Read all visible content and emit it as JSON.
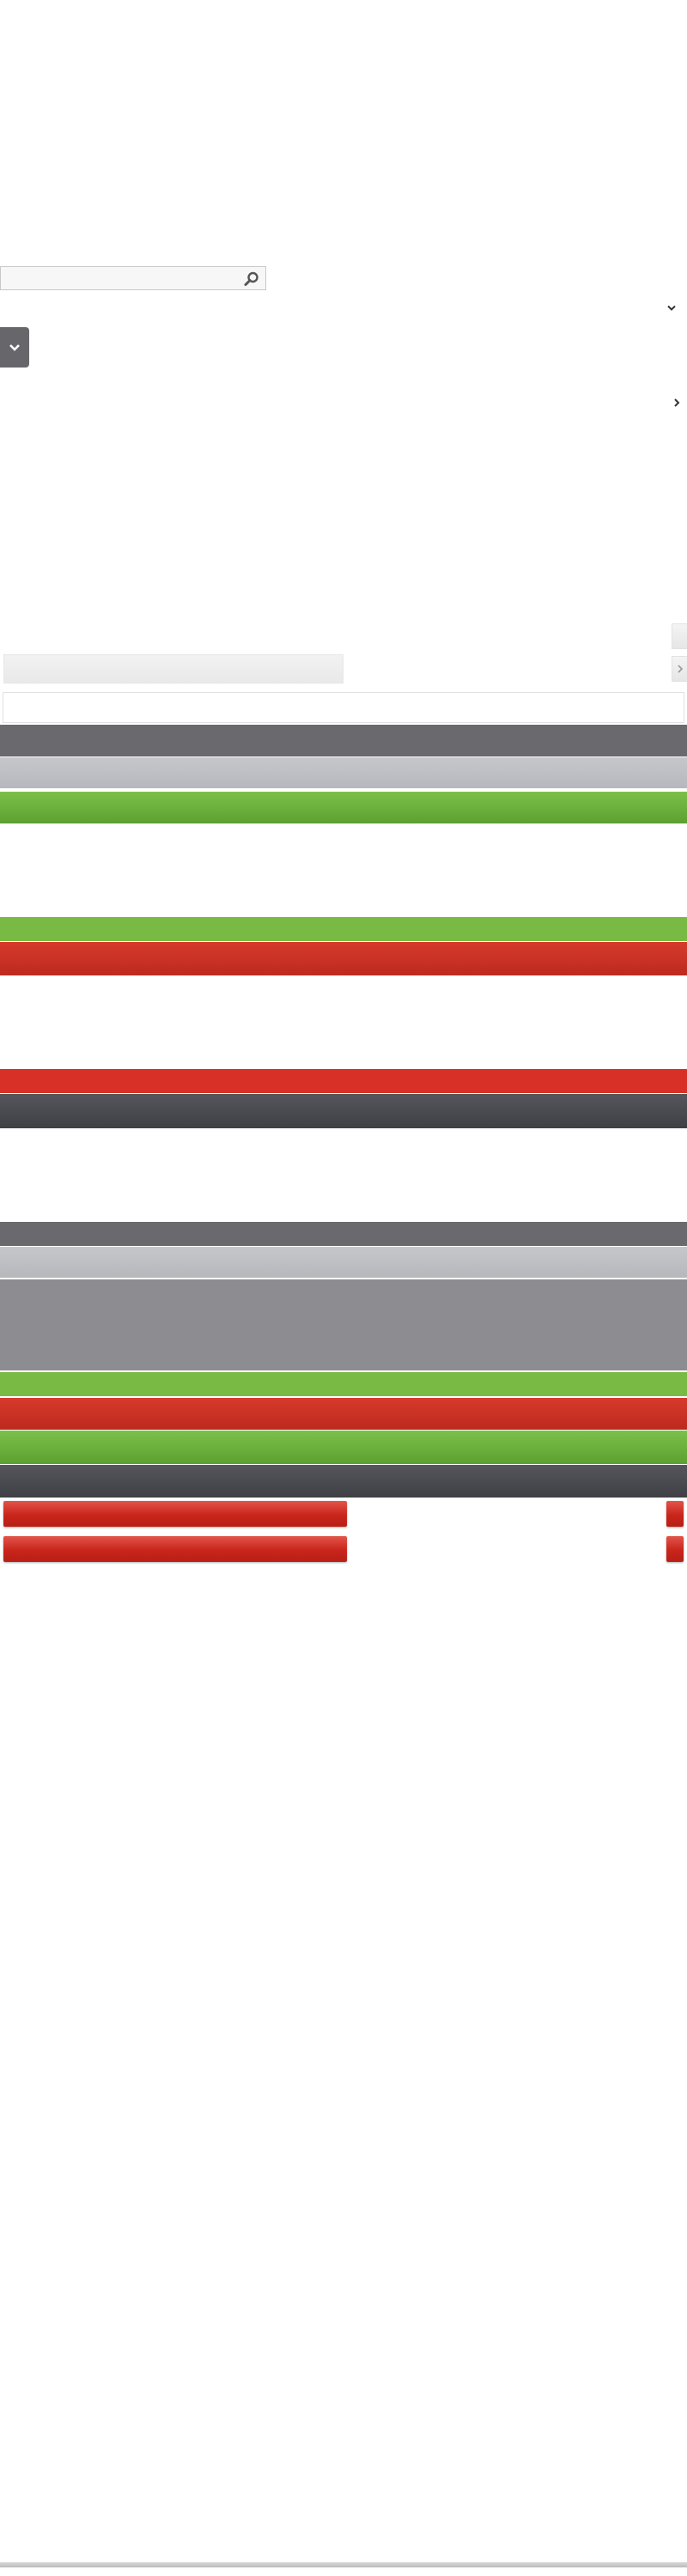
{
  "search": {
    "placeholder": "",
    "value": "",
    "icon": "search-icon"
  },
  "icons": {
    "top_chevron": "chevron-down-icon",
    "dropdown_chevron": "chevron-down-icon",
    "right_chevron": "chevron-right-icon",
    "tab_chevron": "chevron-right-icon"
  },
  "colors": {
    "dark_grey": "#6a6a6e",
    "mid_grey": "#bdbec2",
    "green": "#6fb33e",
    "red": "#d03024",
    "charcoal": "#4a4b50",
    "grey_block": "#8d8c91"
  }
}
